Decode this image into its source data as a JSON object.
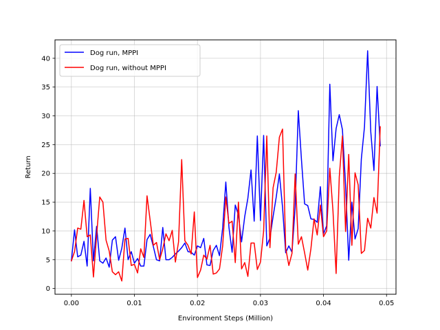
{
  "chart_data": {
    "type": "line",
    "title": "",
    "xlabel": "Environment Steps (Million)",
    "ylabel": "Return",
    "xlim": [
      -0.0026,
      0.0515
    ],
    "ylim": [
      -1.0,
      43.2
    ],
    "x_ticks": [
      0.0,
      0.01,
      0.02,
      0.03,
      0.04,
      0.05
    ],
    "x_tick_labels": [
      "0.00",
      "0.01",
      "0.02",
      "0.03",
      "0.04",
      "0.05"
    ],
    "y_ticks": [
      0,
      5,
      10,
      15,
      20,
      25,
      30,
      35,
      40
    ],
    "y_tick_labels": [
      "0",
      "5",
      "10",
      "15",
      "20",
      "25",
      "30",
      "35",
      "40"
    ],
    "grid": true,
    "legend_position": "top-left",
    "series": [
      {
        "name": "Dog run, MPPI",
        "color": "#0000ff",
        "points": [
          [
            0.0,
            4.8
          ],
          [
            0.0005,
            10.2
          ],
          [
            0.001,
            5.5
          ],
          [
            0.0015,
            5.8
          ],
          [
            0.002,
            8.2
          ],
          [
            0.0025,
            3.9
          ],
          [
            0.003,
            17.4
          ],
          [
            0.0035,
            4.8
          ],
          [
            0.004,
            10.8
          ],
          [
            0.0045,
            4.8
          ],
          [
            0.005,
            4.4
          ],
          [
            0.0055,
            5.3
          ],
          [
            0.006,
            3.7
          ],
          [
            0.0065,
            8.4
          ],
          [
            0.007,
            9.0
          ],
          [
            0.0075,
            4.9
          ],
          [
            0.008,
            7.0
          ],
          [
            0.0085,
            10.5
          ],
          [
            0.009,
            5.0
          ],
          [
            0.0095,
            6.4
          ],
          [
            0.01,
            4.4
          ],
          [
            0.0105,
            5.2
          ],
          [
            0.011,
            3.9
          ],
          [
            0.0115,
            3.9
          ],
          [
            0.012,
            8.5
          ],
          [
            0.0125,
            9.4
          ],
          [
            0.013,
            7.3
          ],
          [
            0.0135,
            5.0
          ],
          [
            0.014,
            4.8
          ],
          [
            0.0145,
            10.6
          ],
          [
            0.015,
            5.0
          ],
          [
            0.0155,
            5.0
          ],
          [
            0.016,
            5.4
          ],
          [
            0.0165,
            6.0
          ],
          [
            0.017,
            6.5
          ],
          [
            0.0175,
            7.1
          ],
          [
            0.018,
            7.9
          ],
          [
            0.0185,
            6.4
          ],
          [
            0.019,
            6.3
          ],
          [
            0.0195,
            5.8
          ],
          [
            0.02,
            7.4
          ],
          [
            0.0205,
            7.1
          ],
          [
            0.021,
            8.7
          ],
          [
            0.0215,
            4.1
          ],
          [
            0.022,
            4.0
          ],
          [
            0.0225,
            6.6
          ],
          [
            0.023,
            7.5
          ],
          [
            0.0235,
            5.7
          ],
          [
            0.024,
            10.5
          ],
          [
            0.0245,
            18.5
          ],
          [
            0.025,
            10.6
          ],
          [
            0.0255,
            6.3
          ],
          [
            0.026,
            14.5
          ],
          [
            0.0265,
            12.8
          ],
          [
            0.027,
            8.1
          ],
          [
            0.0275,
            12.5
          ],
          [
            0.028,
            15.7
          ],
          [
            0.0285,
            20.6
          ],
          [
            0.029,
            11.7
          ],
          [
            0.0295,
            26.5
          ],
          [
            0.03,
            11.8
          ],
          [
            0.0305,
            26.6
          ],
          [
            0.031,
            7.4
          ],
          [
            0.0315,
            8.8
          ],
          [
            0.032,
            12.5
          ],
          [
            0.0325,
            15.9
          ],
          [
            0.033,
            19.9
          ],
          [
            0.0335,
            14.1
          ],
          [
            0.034,
            6.2
          ],
          [
            0.0345,
            7.4
          ],
          [
            0.035,
            6.3
          ],
          [
            0.0355,
            14.1
          ],
          [
            0.036,
            30.9
          ],
          [
            0.0365,
            22.4
          ],
          [
            0.037,
            14.7
          ],
          [
            0.0375,
            14.4
          ],
          [
            0.038,
            12.1
          ],
          [
            0.0385,
            12.0
          ],
          [
            0.039,
            11.5
          ],
          [
            0.0395,
            17.7
          ],
          [
            0.04,
            9.5
          ],
          [
            0.0405,
            10.9
          ],
          [
            0.041,
            35.5
          ],
          [
            0.0415,
            22.2
          ],
          [
            0.042,
            27.8
          ],
          [
            0.0425,
            30.2
          ],
          [
            0.043,
            27.6
          ],
          [
            0.0435,
            18.0
          ],
          [
            0.044,
            4.9
          ],
          [
            0.0445,
            15.0
          ],
          [
            0.045,
            8.6
          ],
          [
            0.0455,
            10.4
          ],
          [
            0.046,
            22.5
          ],
          [
            0.0465,
            28.1
          ],
          [
            0.047,
            41.3
          ],
          [
            0.0475,
            27.2
          ],
          [
            0.048,
            20.5
          ],
          [
            0.0485,
            35.1
          ],
          [
            0.049,
            24.8
          ]
        ]
      },
      {
        "name": "Dog run, without MPPI",
        "color": "#ff0000",
        "points": [
          [
            0.0,
            4.8
          ],
          [
            0.0005,
            6.4
          ],
          [
            0.001,
            10.5
          ],
          [
            0.0015,
            10.3
          ],
          [
            0.002,
            15.3
          ],
          [
            0.0025,
            9.0
          ],
          [
            0.003,
            9.3
          ],
          [
            0.0035,
            2.0
          ],
          [
            0.004,
            9.2
          ],
          [
            0.0045,
            15.9
          ],
          [
            0.005,
            15.0
          ],
          [
            0.0055,
            8.4
          ],
          [
            0.006,
            6.5
          ],
          [
            0.0065,
            2.9
          ],
          [
            0.007,
            2.4
          ],
          [
            0.0075,
            2.9
          ],
          [
            0.008,
            1.3
          ],
          [
            0.0085,
            8.6
          ],
          [
            0.009,
            8.7
          ],
          [
            0.0095,
            4.0
          ],
          [
            0.01,
            4.2
          ],
          [
            0.0105,
            2.7
          ],
          [
            0.011,
            6.9
          ],
          [
            0.0115,
            5.4
          ],
          [
            0.012,
            16.1
          ],
          [
            0.0125,
            11.8
          ],
          [
            0.013,
            7.5
          ],
          [
            0.0135,
            8.0
          ],
          [
            0.014,
            5.0
          ],
          [
            0.0145,
            6.9
          ],
          [
            0.015,
            9.5
          ],
          [
            0.0155,
            8.3
          ],
          [
            0.016,
            10.1
          ],
          [
            0.0165,
            4.6
          ],
          [
            0.017,
            8.1
          ],
          [
            0.0175,
            22.4
          ],
          [
            0.018,
            8.3
          ],
          [
            0.0185,
            7.5
          ],
          [
            0.019,
            6.0
          ],
          [
            0.0195,
            13.3
          ],
          [
            0.02,
            1.9
          ],
          [
            0.0205,
            3.2
          ],
          [
            0.021,
            5.8
          ],
          [
            0.0215,
            5.1
          ],
          [
            0.022,
            7.5
          ],
          [
            0.0225,
            2.5
          ],
          [
            0.023,
            2.7
          ],
          [
            0.0235,
            3.4
          ],
          [
            0.024,
            7.4
          ],
          [
            0.0245,
            15.9
          ],
          [
            0.025,
            11.3
          ],
          [
            0.0255,
            11.7
          ],
          [
            0.026,
            4.5
          ],
          [
            0.0265,
            15.0
          ],
          [
            0.027,
            3.4
          ],
          [
            0.0275,
            4.5
          ],
          [
            0.028,
            2.1
          ],
          [
            0.0285,
            7.9
          ],
          [
            0.029,
            7.9
          ],
          [
            0.0295,
            3.3
          ],
          [
            0.03,
            4.6
          ],
          [
            0.0305,
            10.0
          ],
          [
            0.031,
            26.5
          ],
          [
            0.0315,
            7.1
          ],
          [
            0.032,
            17.5
          ],
          [
            0.0325,
            20.2
          ],
          [
            0.033,
            26.3
          ],
          [
            0.0335,
            27.7
          ],
          [
            0.034,
            7.0
          ],
          [
            0.0345,
            4.0
          ],
          [
            0.035,
            6.1
          ],
          [
            0.0355,
            19.9
          ],
          [
            0.036,
            7.7
          ],
          [
            0.0365,
            9.0
          ],
          [
            0.037,
            6.2
          ],
          [
            0.0375,
            3.2
          ],
          [
            0.038,
            6.9
          ],
          [
            0.0385,
            12.1
          ],
          [
            0.039,
            9.3
          ],
          [
            0.0395,
            14.5
          ],
          [
            0.04,
            9.0
          ],
          [
            0.0405,
            10.0
          ],
          [
            0.041,
            20.9
          ],
          [
            0.0415,
            13.5
          ],
          [
            0.042,
            2.6
          ],
          [
            0.0425,
            19.4
          ],
          [
            0.043,
            26.5
          ],
          [
            0.0435,
            9.9
          ],
          [
            0.044,
            23.3
          ],
          [
            0.0445,
            7.5
          ],
          [
            0.045,
            20.1
          ],
          [
            0.0455,
            18.0
          ],
          [
            0.046,
            6.1
          ],
          [
            0.0465,
            6.6
          ],
          [
            0.047,
            12.2
          ],
          [
            0.0475,
            10.5
          ],
          [
            0.048,
            15.8
          ],
          [
            0.0485,
            13.1
          ],
          [
            0.049,
            28.1
          ]
        ]
      }
    ]
  }
}
